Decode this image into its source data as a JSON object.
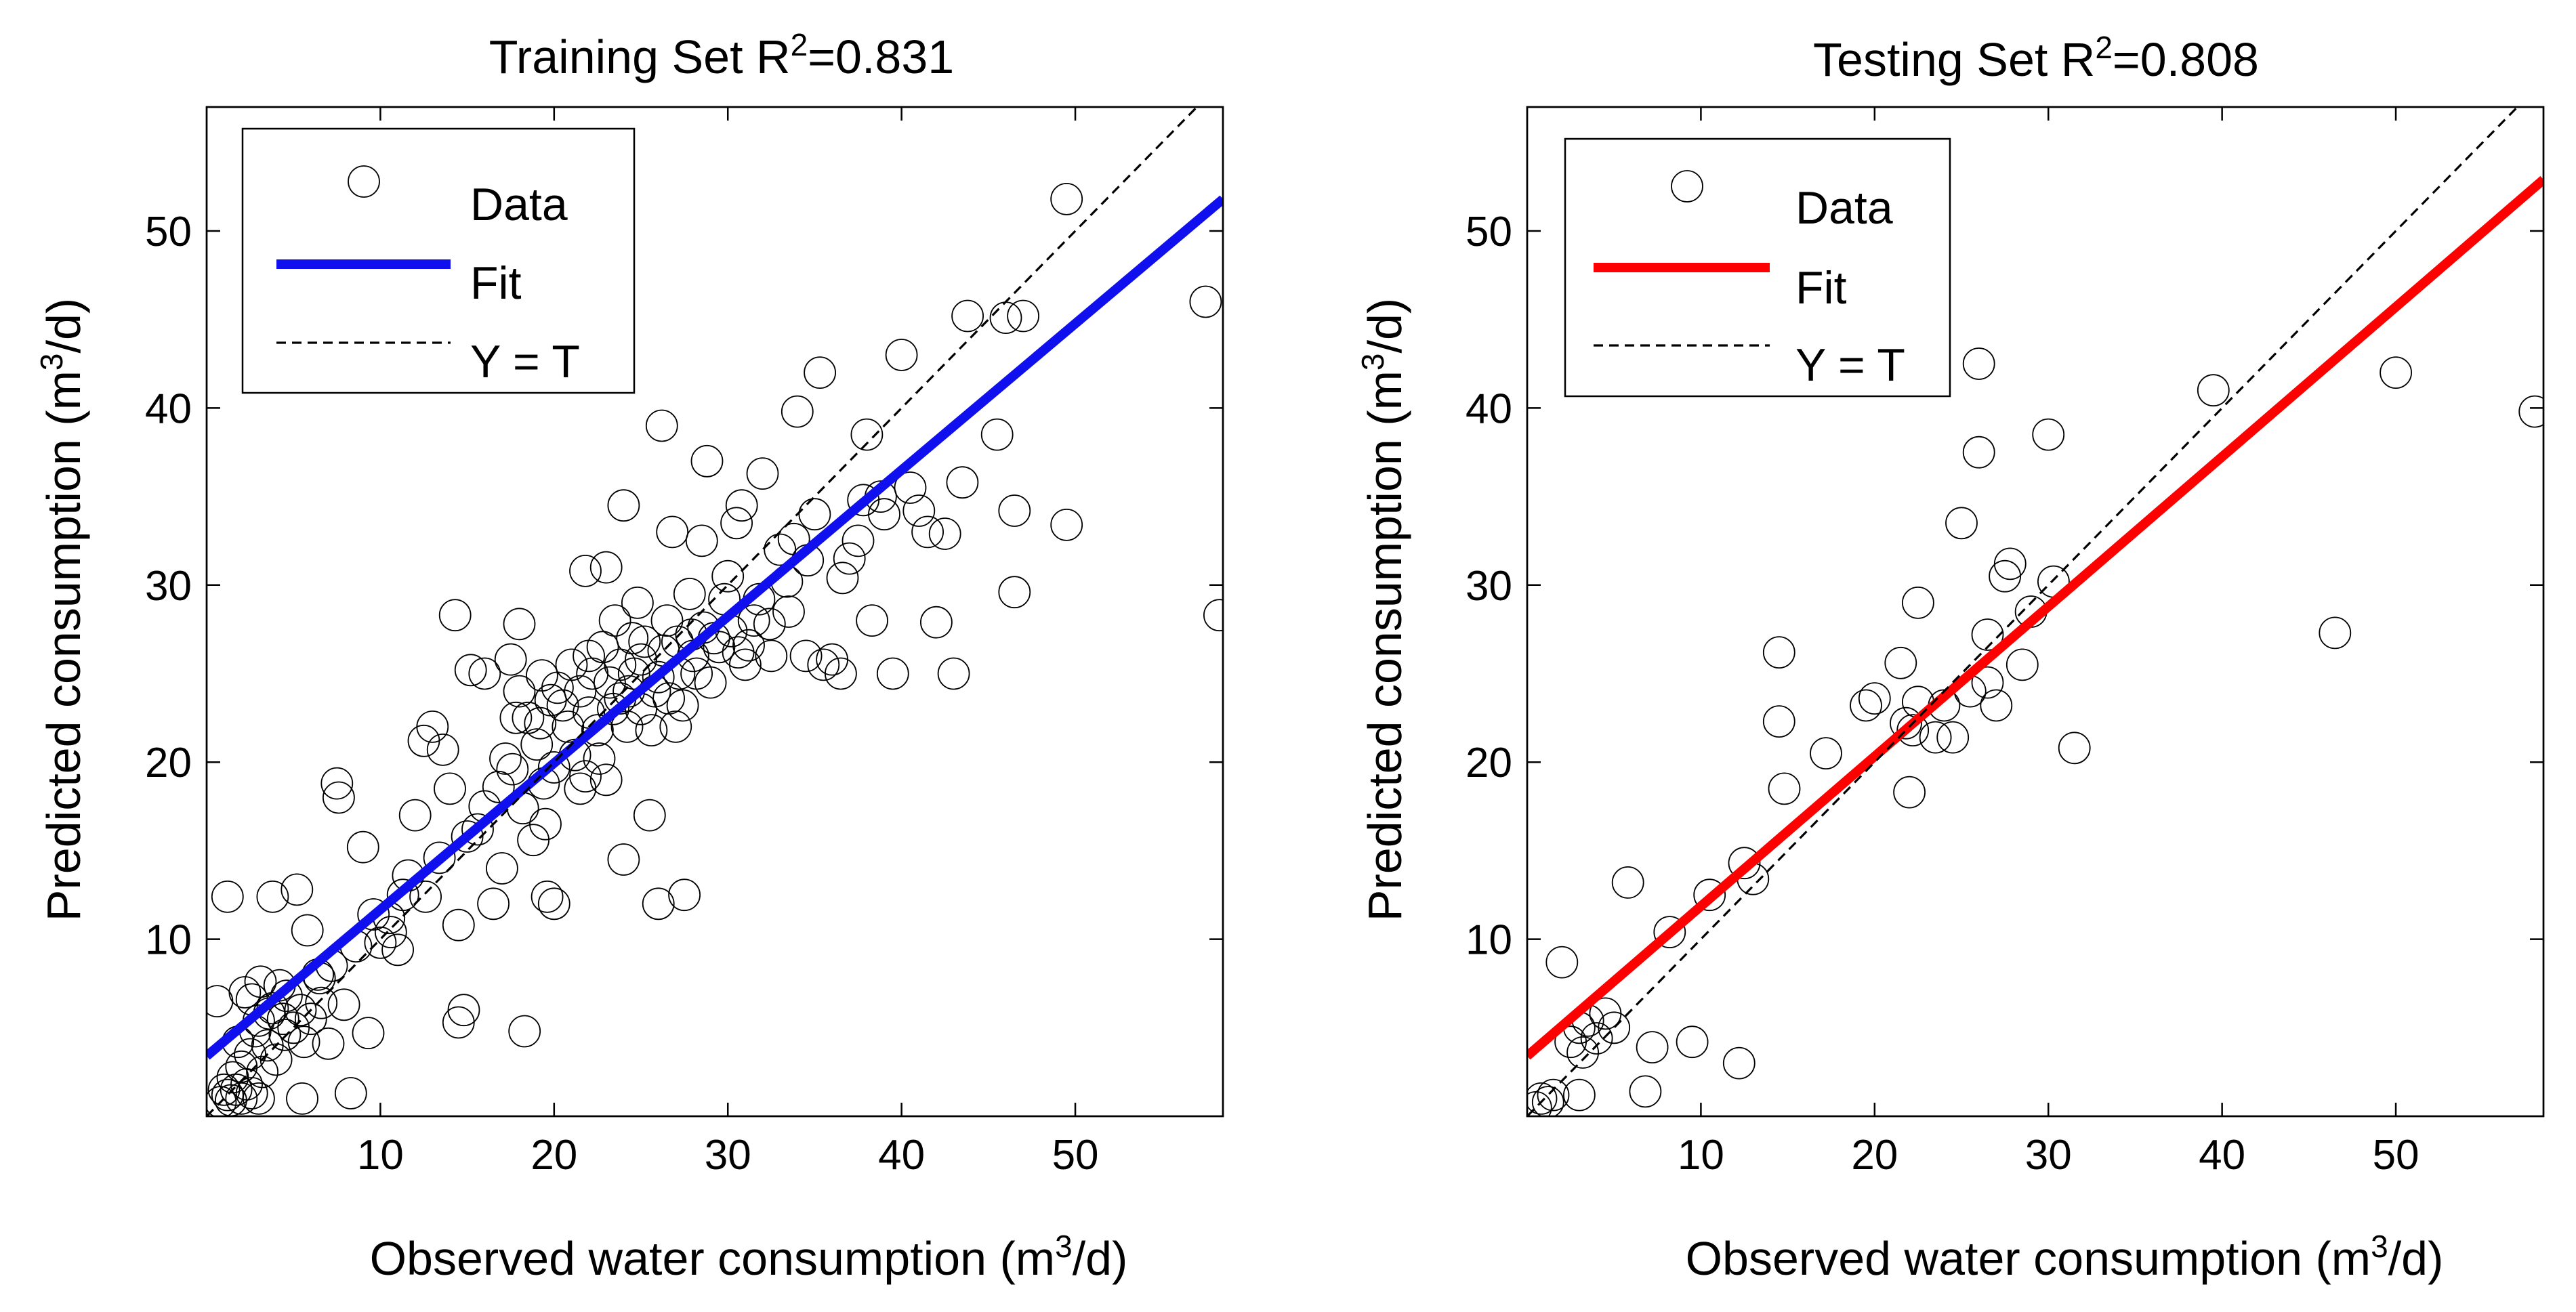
{
  "chart_data": [
    {
      "type": "scatter",
      "title": "Training Set R",
      "title_sup": "2",
      "title_suffix": "=0.831",
      "xlabel": "Observed water consumption (m",
      "xlabel_sup": "3",
      "xlabel_suffix": "/d)",
      "ylabel": "Predicted consumption (m",
      "ylabel_sup": "3",
      "ylabel_suffix": "/d)",
      "xlim": [
        0,
        58.5
      ],
      "ylim": [
        0,
        57
      ],
      "xticks": [
        10,
        20,
        30,
        40,
        50
      ],
      "yticks": [
        10,
        20,
        30,
        40,
        50
      ],
      "legend": {
        "placement": "top-left",
        "entries": [
          "Data",
          "Fit",
          "Y = T"
        ]
      },
      "fit": {
        "color": "#1010ee",
        "x": [
          0,
          58.5
        ],
        "y": [
          3.4,
          51.8
        ]
      },
      "identity": {
        "x": [
          0,
          58.5
        ],
        "y": [
          0,
          58.5
        ]
      },
      "series": [
        {
          "name": "Data",
          "points": [
            [
              0.8,
              0.8
            ],
            [
              1.0,
              1.5
            ],
            [
              1.2,
              1.2
            ],
            [
              1.4,
              0.9
            ],
            [
              1.7,
              1.5
            ],
            [
              2.0,
              1.0
            ],
            [
              2.3,
              1.8
            ],
            [
              2.6,
              1.3
            ],
            [
              3.0,
              1.0
            ],
            [
              1.5,
              2.2
            ],
            [
              2.0,
              2.8
            ],
            [
              2.5,
              3.5
            ],
            [
              3.2,
              2.5
            ],
            [
              1.8,
              4.2
            ],
            [
              2.8,
              4.8
            ],
            [
              3.5,
              4.0
            ],
            [
              4.0,
              3.2
            ],
            [
              4.5,
              4.6
            ],
            [
              3.0,
              5.4
            ],
            [
              3.8,
              6.1
            ],
            [
              4.4,
              5.5
            ],
            [
              5.0,
              5.0
            ],
            [
              2.2,
              7.0
            ],
            [
              3.1,
              7.6
            ],
            [
              4.6,
              6.8
            ],
            [
              5.4,
              6.0
            ],
            [
              6.0,
              5.5
            ],
            [
              0.6,
              6.5
            ],
            [
              1.2,
              12.4
            ],
            [
              3.8,
              12.4
            ],
            [
              5.2,
              12.8
            ],
            [
              5.5,
              1.0
            ],
            [
              7.0,
              4.1
            ],
            [
              7.9,
              6.3
            ],
            [
              8.3,
              1.3
            ],
            [
              9.3,
              4.7
            ],
            [
              6.5,
              7.8
            ],
            [
              7.2,
              8.5
            ],
            [
              5.8,
              10.5
            ],
            [
              7.5,
              18.8
            ],
            [
              7.6,
              18.0
            ],
            [
              9.0,
              15.2
            ],
            [
              10.0,
              9.8
            ],
            [
              10.5,
              11.2
            ],
            [
              11.0,
              9.4
            ],
            [
              11.3,
              12.5
            ],
            [
              12.0,
              17.0
            ],
            [
              12.5,
              21.2
            ],
            [
              13.0,
              22.0
            ],
            [
              13.6,
              20.7
            ],
            [
              14.0,
              18.5
            ],
            [
              14.3,
              28.3
            ],
            [
              14.5,
              10.8
            ],
            [
              14.5,
              5.3
            ],
            [
              14.8,
              6.0
            ],
            [
              15.0,
              15.8
            ],
            [
              15.2,
              25.2
            ],
            [
              16.0,
              17.5
            ],
            [
              16.5,
              12.0
            ],
            [
              17.0,
              14.0
            ],
            [
              17.2,
              20.2
            ],
            [
              17.5,
              25.8
            ],
            [
              18.0,
              27.8
            ],
            [
              18.3,
              4.8
            ],
            [
              18.5,
              22.5
            ],
            [
              18.8,
              15.6
            ],
            [
              19.0,
              21.0
            ],
            [
              19.3,
              24.9
            ],
            [
              19.5,
              16.5
            ],
            [
              19.6,
              12.4
            ],
            [
              20.0,
              12.0
            ],
            [
              20.0,
              19.7
            ],
            [
              20.5,
              23.2
            ],
            [
              21.0,
              25.5
            ],
            [
              21.2,
              20.4
            ],
            [
              21.5,
              18.5
            ],
            [
              21.8,
              30.8
            ],
            [
              22.0,
              22.8
            ],
            [
              22.2,
              25.0
            ],
            [
              22.5,
              21.8
            ],
            [
              22.8,
              26.5
            ],
            [
              23.0,
              31.0
            ],
            [
              23.2,
              24.5
            ],
            [
              23.5,
              28.0
            ],
            [
              23.8,
              25.5
            ],
            [
              24.0,
              34.5
            ],
            [
              24.0,
              14.5
            ],
            [
              24.2,
              22.0
            ],
            [
              24.5,
              27.0
            ],
            [
              24.8,
              29.0
            ],
            [
              25.0,
              23.0
            ],
            [
              25.2,
              26.8
            ],
            [
              25.5,
              17.0
            ],
            [
              25.8,
              24.0
            ],
            [
              26.0,
              12.0
            ],
            [
              26.2,
              39.0
            ],
            [
              26.5,
              28.0
            ],
            [
              26.8,
              33.0
            ],
            [
              27.0,
              22.0
            ],
            [
              27.2,
              25.0
            ],
            [
              27.5,
              12.5
            ],
            [
              27.8,
              29.5
            ],
            [
              28.0,
              26.0
            ],
            [
              28.5,
              32.5
            ],
            [
              28.8,
              37.0
            ],
            [
              29.0,
              24.5
            ],
            [
              29.5,
              26.5
            ],
            [
              30.0,
              30.5
            ],
            [
              30.5,
              33.5
            ],
            [
              30.8,
              34.5
            ],
            [
              31.0,
              25.5
            ],
            [
              31.5,
              28.0
            ],
            [
              32.0,
              36.3
            ],
            [
              32.5,
              26.0
            ],
            [
              33.0,
              32.0
            ],
            [
              33.5,
              28.5
            ],
            [
              34.0,
              39.8
            ],
            [
              34.5,
              26.0
            ],
            [
              35.0,
              34.0
            ],
            [
              35.3,
              42.0
            ],
            [
              35.5,
              25.5
            ],
            [
              36.0,
              25.8
            ],
            [
              36.5,
              25.0
            ],
            [
              37.0,
              31.5
            ],
            [
              37.5,
              32.5
            ],
            [
              38.0,
              38.5
            ],
            [
              38.3,
              28.0
            ],
            [
              38.8,
              35.0
            ],
            [
              39.0,
              34.0
            ],
            [
              39.5,
              25.0
            ],
            [
              40.0,
              43.0
            ],
            [
              40.5,
              35.5
            ],
            [
              41.0,
              34.2
            ],
            [
              41.5,
              33.0
            ],
            [
              42.0,
              27.9
            ],
            [
              42.5,
              32.9
            ],
            [
              43.0,
              25.0
            ],
            [
              43.5,
              35.8
            ],
            [
              43.8,
              45.2
            ],
            [
              45.5,
              38.5
            ],
            [
              46.0,
              45.1
            ],
            [
              46.5,
              34.2
            ],
            [
              46.5,
              29.6
            ],
            [
              47.0,
              45.2
            ],
            [
              49.5,
              51.8
            ],
            [
              49.5,
              33.4
            ],
            [
              57.5,
              46.0
            ],
            [
              58.3,
              28.3
            ],
            [
              16.0,
              25.0
            ],
            [
              17.8,
              22.5
            ],
            [
              18.0,
              24.0
            ],
            [
              19.2,
              22.2
            ],
            [
              19.8,
              23.5
            ],
            [
              20.2,
              24.2
            ],
            [
              20.8,
              22.0
            ],
            [
              21.5,
              24.0
            ],
            [
              21.8,
              19.2
            ],
            [
              22.0,
              26.0
            ],
            [
              22.6,
              20.2
            ],
            [
              23.0,
              19.0
            ],
            [
              23.4,
              23.0
            ],
            [
              23.8,
              23.6
            ],
            [
              24.3,
              24.0
            ],
            [
              24.6,
              25.0
            ],
            [
              25.0,
              25.8
            ],
            [
              25.6,
              21.8
            ],
            [
              26.0,
              24.8
            ],
            [
              26.3,
              26.3
            ],
            [
              26.6,
              23.6
            ],
            [
              27.1,
              26.8
            ],
            [
              27.4,
              23.2
            ],
            [
              27.9,
              27.2
            ],
            [
              28.2,
              25.0
            ],
            [
              28.6,
              27.6
            ],
            [
              29.2,
              27.0
            ],
            [
              29.8,
              29.2
            ],
            [
              30.2,
              27.4
            ],
            [
              30.6,
              26.2
            ],
            [
              31.2,
              26.6
            ],
            [
              31.8,
              29.2
            ],
            [
              32.4,
              27.8
            ],
            [
              33.4,
              30.2
            ],
            [
              33.8,
              32.6
            ],
            [
              34.6,
              31.4
            ],
            [
              36.6,
              30.4
            ],
            [
              37.8,
              34.8
            ],
            [
              12.6,
              12.4
            ],
            [
              13.4,
              14.6
            ],
            [
              15.6,
              16.2
            ],
            [
              16.8,
              18.6
            ],
            [
              17.6,
              19.6
            ],
            [
              18.2,
              17.4
            ],
            [
              19.4,
              18.8
            ],
            [
              10.6,
              10.4
            ],
            [
              11.6,
              13.6
            ],
            [
              8.6,
              9.6
            ],
            [
              9.6,
              11.4
            ],
            [
              6.4,
              8.0
            ],
            [
              2.6,
              6.6
            ],
            [
              3.6,
              5.8
            ],
            [
              4.2,
              7.4
            ],
            [
              5.6,
              4.2
            ],
            [
              6.6,
              6.4
            ]
          ]
        }
      ]
    },
    {
      "type": "scatter",
      "title": "Testing Set R",
      "title_sup": "2",
      "title_suffix": "=0.808",
      "xlabel": "Observed water consumption (m",
      "xlabel_sup": "3",
      "xlabel_suffix": "/d)",
      "ylabel": "Predicted consumption (m",
      "ylabel_sup": "3",
      "ylabel_suffix": "/d)",
      "xlim": [
        0,
        58.5
      ],
      "ylim": [
        0,
        57
      ],
      "xticks": [
        10,
        20,
        30,
        40,
        50
      ],
      "yticks": [
        10,
        20,
        30,
        40,
        50
      ],
      "legend": {
        "placement": "top-left",
        "entries": [
          "Data",
          "Fit",
          "Y = T"
        ]
      },
      "fit": {
        "color": "#ff0000",
        "x": [
          0,
          58.5
        ],
        "y": [
          3.4,
          52.9
        ]
      },
      "identity": {
        "x": [
          0,
          58.5
        ],
        "y": [
          0,
          58.5
        ]
      },
      "series": [
        {
          "name": "Data",
          "points": [
            [
              0.5,
              0.5
            ],
            [
              0.8,
              1.0
            ],
            [
              1.2,
              0.8
            ],
            [
              1.5,
              1.2
            ],
            [
              2.0,
              8.7
            ],
            [
              2.5,
              4.2
            ],
            [
              3.0,
              5.0
            ],
            [
              3.2,
              3.6
            ],
            [
              3.5,
              5.4
            ],
            [
              4.0,
              4.4
            ],
            [
              4.5,
              5.8
            ],
            [
              5.0,
              5.0
            ],
            [
              3.0,
              1.2
            ],
            [
              5.8,
              13.2
            ],
            [
              6.8,
              1.4
            ],
            [
              7.2,
              3.9
            ],
            [
              8.2,
              10.4
            ],
            [
              9.5,
              4.2
            ],
            [
              10.5,
              12.5
            ],
            [
              12.2,
              3.0
            ],
            [
              12.5,
              14.3
            ],
            [
              13.0,
              13.4
            ],
            [
              14.5,
              26.2
            ],
            [
              14.5,
              22.3
            ],
            [
              14.8,
              18.5
            ],
            [
              17.2,
              20.5
            ],
            [
              19.5,
              23.2
            ],
            [
              20.0,
              23.6
            ],
            [
              21.5,
              25.6
            ],
            [
              21.8,
              22.2
            ],
            [
              22.0,
              18.3
            ],
            [
              22.2,
              21.8
            ],
            [
              22.5,
              29.0
            ],
            [
              22.5,
              23.4
            ],
            [
              23.5,
              21.4
            ],
            [
              24.0,
              23.2
            ],
            [
              24.5,
              21.4
            ],
            [
              25.0,
              33.5
            ],
            [
              25.5,
              24.0
            ],
            [
              26.0,
              37.5
            ],
            [
              26.0,
              42.5
            ],
            [
              26.5,
              24.5
            ],
            [
              26.5,
              27.2
            ],
            [
              27.0,
              23.2
            ],
            [
              27.5,
              30.5
            ],
            [
              27.8,
              31.2
            ],
            [
              28.5,
              25.5
            ],
            [
              29.0,
              28.5
            ],
            [
              30.0,
              38.5
            ],
            [
              30.3,
              30.2
            ],
            [
              31.5,
              20.8
            ],
            [
              39.5,
              41.0
            ],
            [
              46.5,
              27.3
            ],
            [
              50.0,
              42.0
            ],
            [
              58.0,
              39.8
            ]
          ]
        }
      ]
    }
  ]
}
